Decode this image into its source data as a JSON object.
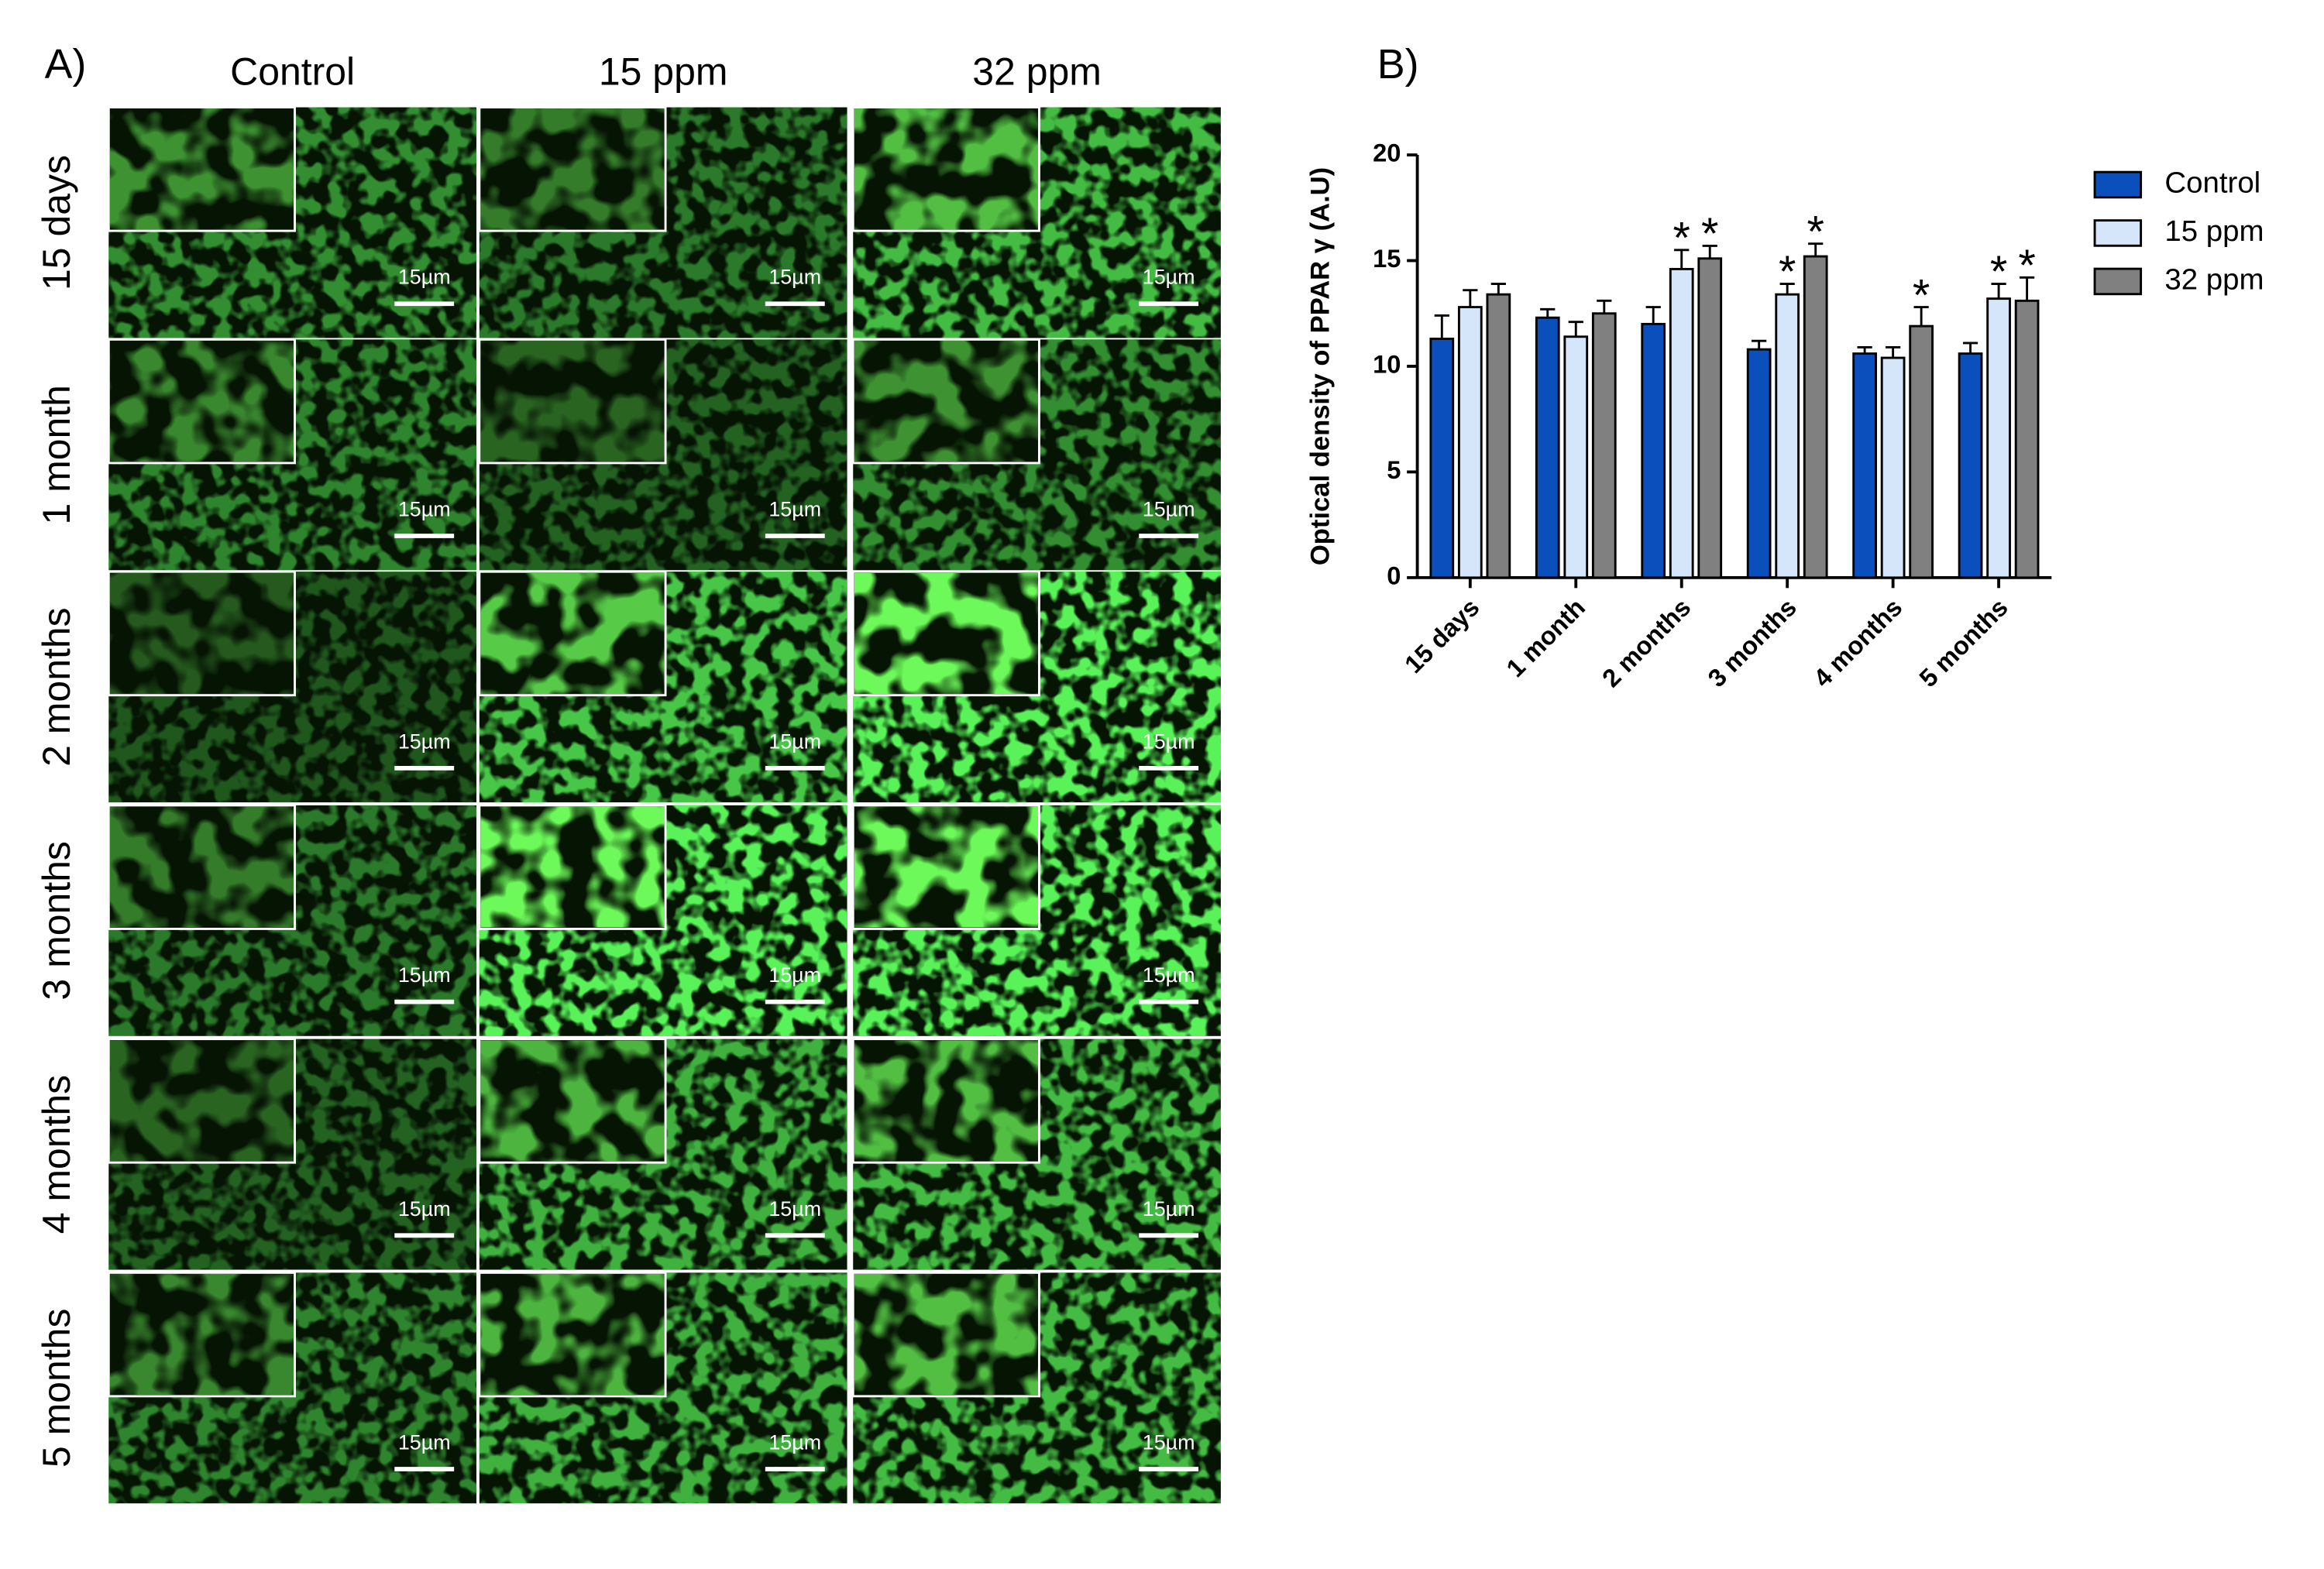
{
  "panel_a_label": "A)",
  "panel_b_label": "B)",
  "micrographs": {
    "columns": [
      "Control",
      "15 ppm",
      "32 ppm"
    ],
    "rows": [
      {
        "label": "15 days",
        "scale_labels": [
          "15µm",
          "15µm",
          "15µm"
        ]
      },
      {
        "label": "1 month",
        "scale_labels": [
          "15µm",
          "15µm",
          "15µm"
        ]
      },
      {
        "label": "2 months",
        "scale_labels": [
          "15µm",
          "15µm",
          "15µm"
        ]
      },
      {
        "label": "3 months",
        "scale_labels": [
          "15µm",
          "15µm",
          "15µm"
        ]
      },
      {
        "label": "4 months",
        "scale_labels": [
          "15µm",
          "15µm",
          "15µm"
        ]
      },
      {
        "label": "5 months",
        "scale_labels": [
          "15µm",
          "15µm",
          "15µm"
        ]
      }
    ]
  },
  "chart_data": {
    "type": "bar",
    "y_label": "Optical density of PPAR γ (A.U)",
    "categories": [
      "15 days",
      "1 month",
      "2 months",
      "3 months",
      "4 months",
      "5 months"
    ],
    "series": [
      {
        "name": "Control",
        "color": "#0b4fbd",
        "values": [
          11.3,
          12.3,
          12.0,
          10.8,
          10.6,
          10.6
        ],
        "errors": [
          1.1,
          0.4,
          0.8,
          0.4,
          0.3,
          0.5
        ],
        "annotations": [
          null,
          null,
          null,
          null,
          null,
          null
        ]
      },
      {
        "name": "15 ppm",
        "color": "#d5e5fa",
        "values": [
          12.8,
          11.4,
          14.6,
          13.4,
          10.4,
          13.2
        ],
        "errors": [
          0.8,
          0.7,
          0.9,
          0.5,
          0.5,
          0.7
        ],
        "annotations": [
          null,
          null,
          "*",
          "*",
          null,
          "*"
        ]
      },
      {
        "name": "32 ppm",
        "color": "#808080",
        "values": [
          13.4,
          12.5,
          15.1,
          15.2,
          11.9,
          13.1
        ],
        "errors": [
          0.5,
          0.6,
          0.6,
          0.6,
          0.9,
          1.1
        ],
        "annotations": [
          null,
          null,
          "*",
          "*",
          "*",
          "*"
        ]
      }
    ],
    "ylim": [
      0,
      20
    ],
    "yticks": [
      0,
      5,
      10,
      15,
      20
    ],
    "legend": "right"
  }
}
